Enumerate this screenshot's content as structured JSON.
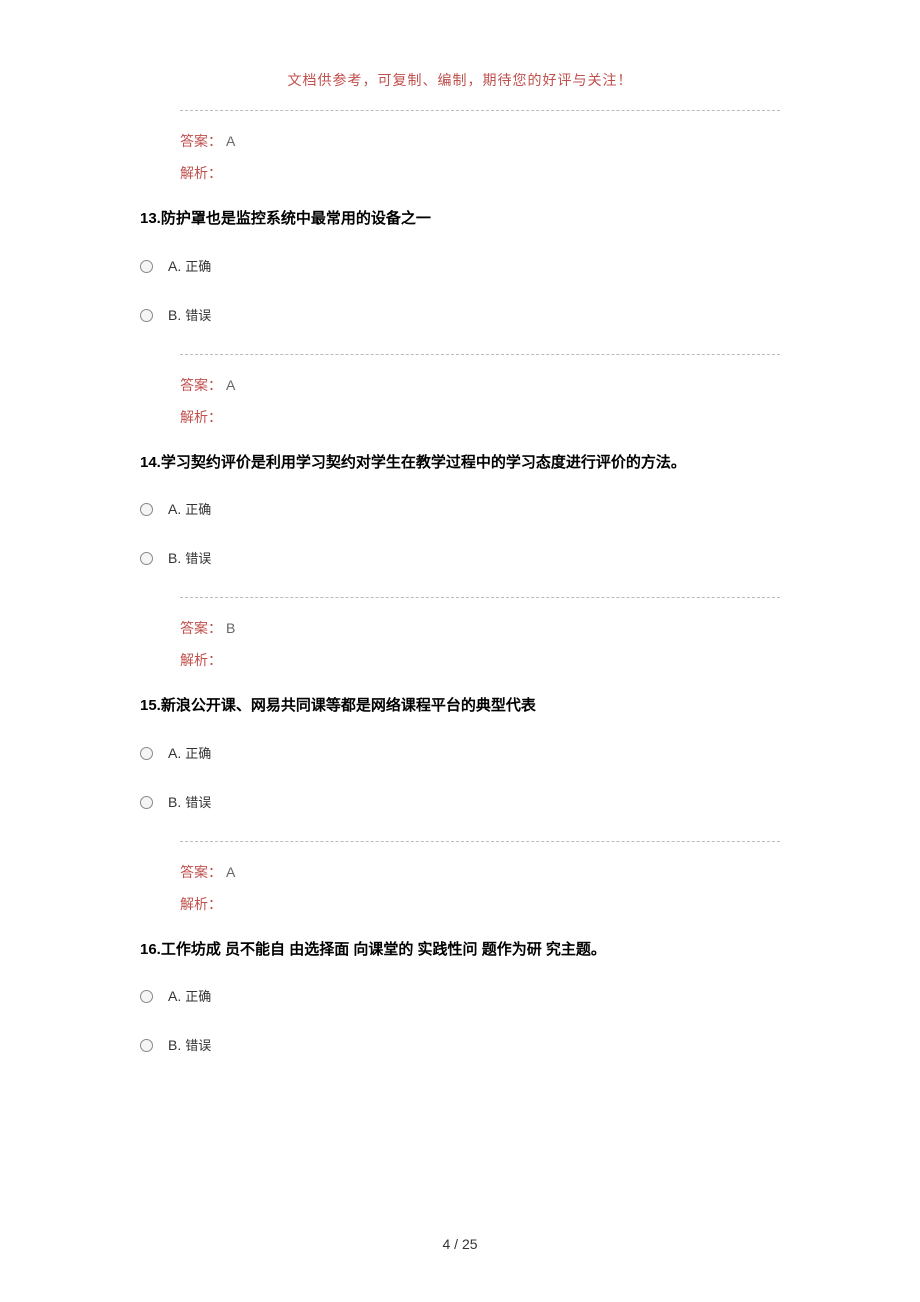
{
  "header_note": "文档供参考，可复制、编制，期待您的好评与关注！",
  "answer_label": "答案：",
  "analysis_label": "解析：",
  "option_a_letter": "A.",
  "option_b_letter": "B.",
  "option_true": "正确",
  "option_false": "错误",
  "q12": {
    "answer": "A"
  },
  "q13": {
    "number": "13.",
    "text": "防护罩也是监控系统中最常用的设备之一",
    "answer": "A"
  },
  "q14": {
    "number": "14.",
    "text": "学习契约评价是利用学习契约对学生在教学过程中的学习态度进行评价的方法。",
    "answer": "B"
  },
  "q15": {
    "number": "15.",
    "text": "新浪公开课、网易共同课等都是网络课程平台的典型代表",
    "answer": "A"
  },
  "q16": {
    "number": "16.",
    "text": "工作坊成  员不能自   由选择面   向课堂的  实践性问   题作为研   究主题。"
  },
  "page_number": "4 / 25"
}
